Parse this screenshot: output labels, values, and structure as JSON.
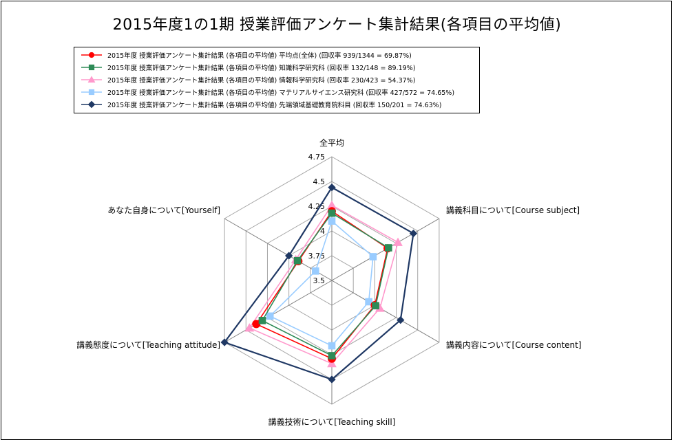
{
  "chart_data": {
    "type": "radar",
    "title": "2015年度1の1期  授業評価アンケート集計結果(各項目の平均値)",
    "axes": [
      "全平均",
      "講義科目について[Course subject]",
      "講義内容について[Course content]",
      "講義技術について[Teaching skill]",
      "講義態度について[Teaching attitude]",
      "あなた自身について[Yourself]"
    ],
    "rlim": [
      3.5,
      4.75
    ],
    "ticks": [
      "3.5",
      "3.75",
      "4",
      "4.25",
      "4.5",
      "4.75"
    ],
    "tick_values": [
      3.5,
      3.75,
      4.0,
      4.25,
      4.5,
      4.75
    ],
    "series": [
      {
        "name": "2015年度 授業評価アンケート集計結果 (各項目の平均値) 平均点(全体) (回収率 939/1344 = 69.87%)",
        "color": "#ff0000",
        "marker": "circle",
        "values": [
          4.2,
          4.15,
          4.0,
          4.29,
          4.38,
          3.89
        ]
      },
      {
        "name": "2015年度 授業評価アンケート集計結果 (各項目の平均値) 知識科学研究科 (回収率 132/148 = 89.19%)",
        "color": "#2e8b57",
        "marker": "square",
        "values": [
          4.18,
          4.16,
          4.01,
          4.26,
          4.31,
          3.9
        ]
      },
      {
        "name": "2015年度 授業評価アンケート集計結果 (各項目の平均値) 情報科学研究科 (回収率 230/423 = 54.37%)",
        "color": "#ff99cc",
        "marker": "triangle",
        "values": [
          4.26,
          4.27,
          4.06,
          4.34,
          4.46,
          3.92
        ]
      },
      {
        "name": "2015年度 授業評価アンケート集計結果 (各項目の平均値) マテリアルサイエンス研究科 (回収率 427/572 = 74.65%)",
        "color": "#99ccff",
        "marker": "square",
        "values": [
          4.1,
          3.98,
          3.93,
          4.16,
          4.22,
          3.69
        ]
      },
      {
        "name": "2015年度 授業評価アンケート集計結果 (各項目の平均値) 先端領域基礎教育院科目 (回収率 150/201 = 74.63%)",
        "color": "#1f3864",
        "marker": "diamond",
        "values": [
          4.44,
          4.45,
          4.3,
          4.5,
          4.75,
          4.0
        ]
      }
    ]
  }
}
